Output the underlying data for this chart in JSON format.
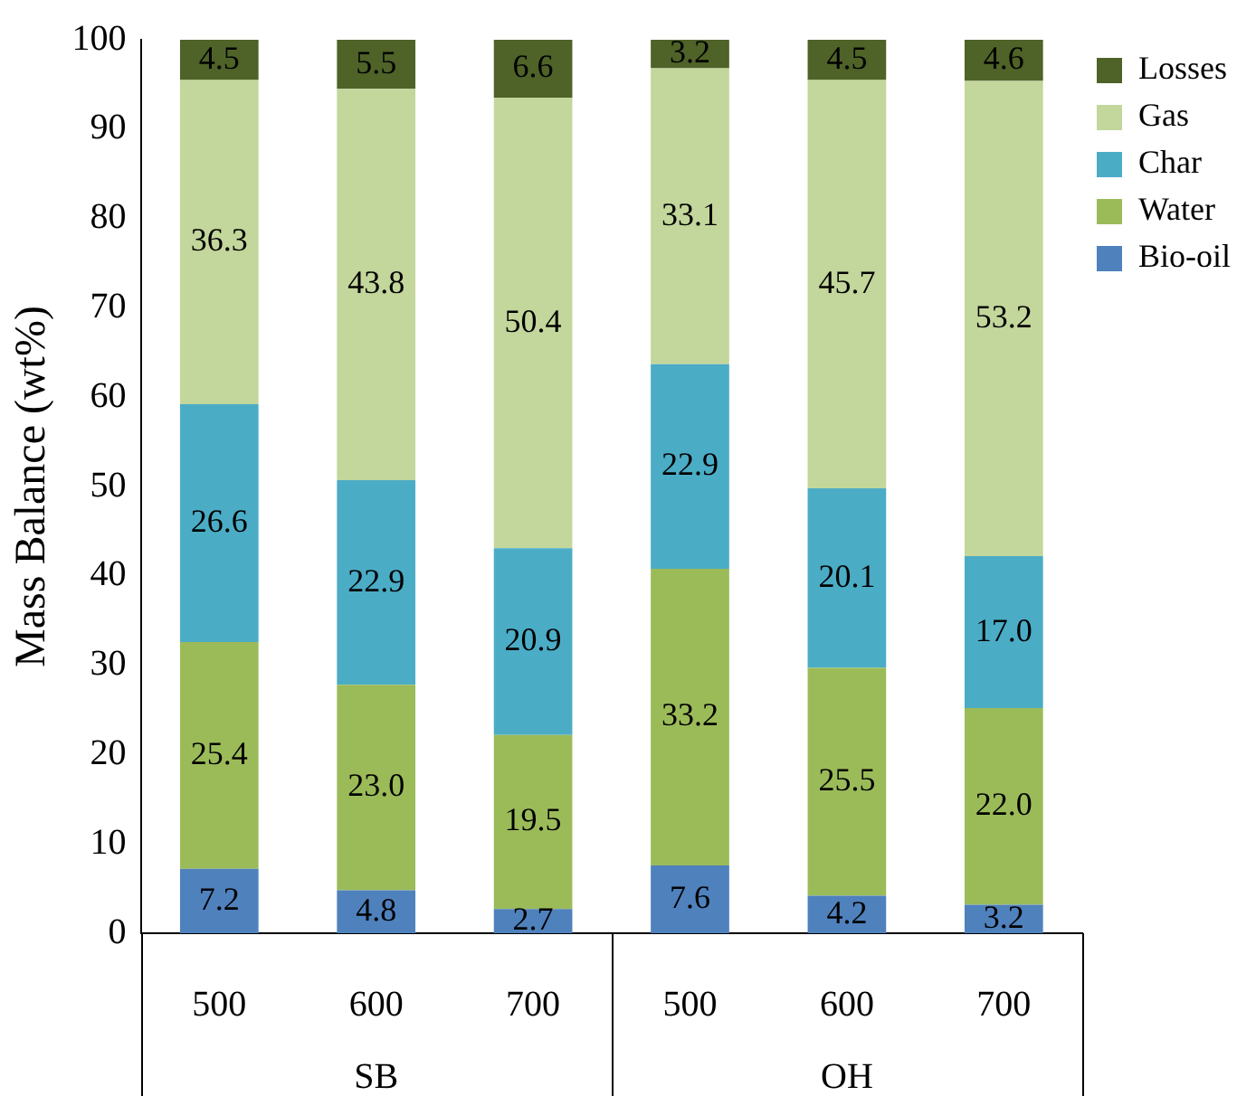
{
  "chart_data": {
    "type": "bar",
    "stacked": true,
    "ylabel": "Mass Balance (wt%)",
    "categories": [
      "500",
      "600",
      "700",
      "500",
      "600",
      "700"
    ],
    "annotations": [
      "SB",
      "OH"
    ],
    "ylim": [
      0,
      100
    ],
    "yticks": [
      0,
      10,
      20,
      30,
      40,
      50,
      60,
      70,
      80,
      90,
      100
    ],
    "grid": false,
    "legend": "right",
    "series": [
      {
        "name": "Bio-oil",
        "color": "#4f81bd",
        "values": [
          7.2,
          4.8,
          2.7,
          7.6,
          4.2,
          3.2
        ],
        "value_labels": [
          "7.2",
          "4.8",
          "2.7",
          "7.6",
          "4.2",
          "3.2"
        ]
      },
      {
        "name": "Water",
        "color": "#9bbb59",
        "values": [
          25.4,
          23.0,
          19.5,
          33.2,
          25.5,
          22.0
        ],
        "value_labels": [
          "25.4",
          "23.0",
          "19.5",
          "33.2",
          "25.5",
          "22.0"
        ]
      },
      {
        "name": "Char",
        "color": "#4bacc6",
        "values": [
          26.6,
          22.9,
          20.9,
          22.9,
          20.1,
          17.0
        ],
        "value_labels": [
          "26.6",
          "22.9",
          "20.9",
          "22.9",
          "20.1",
          "17.0"
        ]
      },
      {
        "name": "Gas",
        "color": "#c3d69b",
        "values": [
          36.3,
          43.8,
          50.4,
          33.1,
          45.7,
          53.2
        ],
        "value_labels": [
          "36.3",
          "43.8",
          "50.4",
          "33.1",
          "45.7",
          "53.2"
        ]
      },
      {
        "name": "Losses",
        "color": "#4f6228",
        "values": [
          4.5,
          5.5,
          6.6,
          3.2,
          4.5,
          4.6
        ],
        "value_labels": [
          "4.5",
          "5.5",
          "6.6",
          "3.2",
          "4.5",
          "4.6"
        ]
      }
    ]
  }
}
